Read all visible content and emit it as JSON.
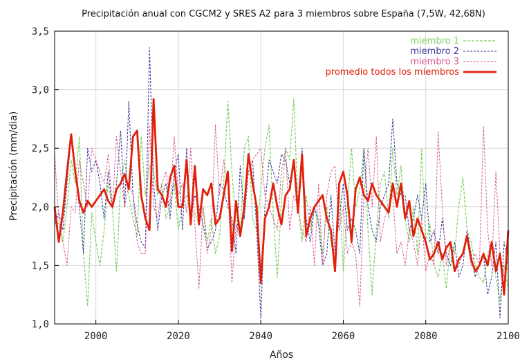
{
  "chart_data": {
    "type": "line",
    "title": "Precipitación anual con CGCM2 y SRES A2 para 3 miembros sobre España (7,5W, 42,68N)",
    "xlabel": "Años",
    "ylabel": "Precipitación (mm/dia)",
    "xlim": [
      1990,
      2100
    ],
    "ylim": [
      1.0,
      3.5
    ],
    "x_ticks": [
      2000,
      2020,
      2040,
      2060,
      2080,
      2100
    ],
    "x_tick_labels": [
      "2000",
      "2020",
      "2040",
      "2060",
      "2080",
      "2100"
    ],
    "y_ticks": [
      1.0,
      1.5,
      2.0,
      2.5,
      3.0,
      3.5
    ],
    "y_tick_labels": [
      "1,0",
      "1,5",
      "2,0",
      "2,5",
      "3,0",
      "3,5"
    ],
    "grid": true,
    "legend_position": "top-right",
    "x_start": 1990,
    "series": [
      {
        "name": "miembro 1",
        "color": "#7fcf5f",
        "dash": "4,2",
        "width": 1.2,
        "values": [
          1.9,
          1.85,
          1.7,
          2.0,
          2.4,
          2.2,
          2.6,
          1.6,
          1.15,
          1.95,
          1.7,
          1.5,
          1.8,
          2.2,
          2.0,
          1.45,
          2.2,
          2.4,
          2.1,
          1.9,
          1.75,
          2.6,
          2.1,
          2.35,
          2.3,
          2.1,
          2.2,
          1.9,
          2.0,
          2.2,
          1.8,
          2.05,
          2.1,
          1.9,
          1.95,
          1.85,
          2.0,
          1.7,
          1.9,
          1.6,
          1.75,
          2.2,
          2.9,
          2.3,
          1.85,
          1.75,
          2.5,
          2.6,
          1.9,
          1.8,
          2.15,
          2.5,
          2.7,
          1.95,
          1.4,
          2.05,
          2.5,
          2.4,
          2.92,
          2.0,
          1.7,
          2.1,
          1.8,
          2.0,
          1.9,
          1.6,
          2.0,
          1.7,
          1.5,
          2.2,
          1.45,
          2.0,
          2.5,
          2.0,
          2.15,
          2.5,
          1.8,
          1.25,
          1.8,
          2.2,
          2.3,
          1.9,
          2.5,
          2.1,
          2.35,
          1.9,
          1.7,
          2.0,
          1.6,
          2.5,
          1.7,
          1.85,
          1.5,
          1.4,
          1.6,
          1.3,
          1.7,
          1.6,
          2.0,
          2.25,
          1.8,
          1.7,
          1.5,
          1.4,
          1.35,
          1.6,
          1.7,
          1.4,
          1.2,
          1.5,
          1.3
        ]
      },
      {
        "name": "miembro 2",
        "color": "#3a3aa0",
        "dash": "3,2",
        "width": 1.1,
        "values": [
          1.85,
          1.95,
          1.8,
          2.2,
          2.6,
          2.3,
          2.0,
          1.6,
          2.5,
          2.3,
          2.4,
          2.2,
          1.9,
          2.3,
          2.0,
          2.2,
          2.65,
          2.0,
          2.9,
          2.1,
          1.85,
          1.7,
          1.65,
          3.36,
          2.2,
          1.8,
          2.1,
          2.2,
          1.9,
          2.3,
          2.45,
          1.8,
          2.5,
          1.9,
          2.1,
          2.0,
          1.85,
          1.65,
          1.7,
          1.8,
          2.2,
          2.15,
          2.0,
          1.9,
          1.6,
          2.35,
          1.9,
          2.3,
          2.4,
          1.8,
          1.05,
          2.0,
          2.4,
          2.3,
          2.2,
          2.45,
          2.4,
          2.2,
          2.4,
          2.0,
          2.5,
          1.9,
          1.7,
          2.0,
          1.85,
          1.5,
          1.6,
          2.1,
          1.6,
          1.9,
          2.2,
          1.8,
          1.9,
          1.8,
          1.6,
          2.5,
          2.0,
          1.8,
          1.7,
          2.0,
          2.1,
          2.2,
          2.75,
          2.2,
          2.1,
          2.1,
          1.8,
          1.9,
          2.1,
          1.9,
          2.2,
          1.7,
          1.8,
          1.6,
          1.9,
          1.6,
          1.5,
          1.7,
          1.4,
          1.5,
          1.8,
          1.6,
          1.4,
          1.5,
          1.6,
          1.25,
          1.4,
          1.7,
          1.05,
          1.7,
          1.5
        ]
      },
      {
        "name": "miembro 3",
        "color": "#d8568e",
        "dash": "3,2",
        "width": 1.0,
        "values": [
          2.45,
          1.9,
          1.7,
          1.5,
          2.0,
          1.95,
          2.4,
          2.2,
          2.0,
          2.5,
          2.4,
          2.3,
          2.2,
          2.45,
          2.0,
          2.6,
          2.3,
          2.0,
          2.2,
          2.1,
          1.7,
          1.6,
          1.6,
          2.7,
          2.0,
          1.9,
          2.2,
          2.3,
          2.0,
          2.6,
          2.1,
          2.2,
          1.95,
          2.5,
          1.85,
          1.3,
          2.0,
          1.6,
          1.8,
          2.7,
          2.1,
          2.4,
          2.2,
          1.35,
          1.85,
          1.75,
          1.95,
          2.3,
          2.4,
          2.45,
          2.5,
          2.1,
          2.0,
          1.9,
          1.8,
          2.3,
          2.5,
          1.8,
          2.1,
          2.0,
          1.8,
          1.7,
          2.0,
          1.5,
          2.2,
          1.5,
          2.1,
          2.3,
          2.35,
          1.8,
          2.0,
          1.6,
          1.7,
          1.6,
          1.15,
          2.1,
          2.5,
          2.0,
          2.6,
          1.7,
          1.9,
          2.0,
          2.1,
          1.6,
          1.7,
          1.5,
          1.8,
          1.7,
          1.5,
          1.9,
          1.45,
          1.6,
          1.5,
          2.64,
          2.0,
          1.5,
          1.7,
          1.45,
          1.5,
          1.6,
          1.8,
          1.5,
          1.6,
          1.5,
          2.69,
          1.8,
          1.5,
          2.3,
          1.6,
          1.4,
          1.5
        ]
      },
      {
        "name": "promedio todos los miembros",
        "color": "#e0200a",
        "dash": "",
        "width": 2.8,
        "values": [
          2.0,
          1.7,
          1.95,
          2.3,
          2.62,
          2.3,
          2.05,
          1.95,
          2.05,
          2.0,
          2.05,
          2.1,
          2.15,
          2.05,
          2.0,
          2.15,
          2.2,
          2.28,
          2.15,
          2.6,
          2.65,
          2.1,
          1.9,
          1.8,
          2.92,
          2.15,
          2.1,
          2.0,
          2.25,
          2.35,
          2.0,
          2.0,
          2.4,
          1.85,
          2.35,
          1.85,
          2.15,
          2.1,
          2.2,
          1.85,
          1.9,
          2.1,
          2.3,
          1.62,
          2.05,
          1.75,
          2.0,
          2.45,
          2.2,
          2.0,
          1.35,
          1.9,
          2.0,
          2.2,
          2.0,
          1.85,
          2.1,
          2.15,
          2.4,
          1.95,
          2.45,
          1.75,
          1.9,
          2.0,
          2.05,
          2.1,
          1.9,
          1.8,
          1.45,
          2.2,
          2.3,
          2.1,
          1.7,
          2.15,
          2.25,
          2.1,
          2.05,
          2.2,
          2.1,
          2.05,
          2.0,
          1.95,
          2.2,
          2.0,
          2.2,
          1.9,
          2.05,
          1.75,
          1.9,
          1.8,
          1.7,
          1.55,
          1.6,
          1.7,
          1.55,
          1.65,
          1.7,
          1.45,
          1.55,
          1.6,
          1.75,
          1.55,
          1.45,
          1.5,
          1.6,
          1.5,
          1.7,
          1.45,
          1.6,
          1.25,
          1.8
        ]
      }
    ]
  }
}
